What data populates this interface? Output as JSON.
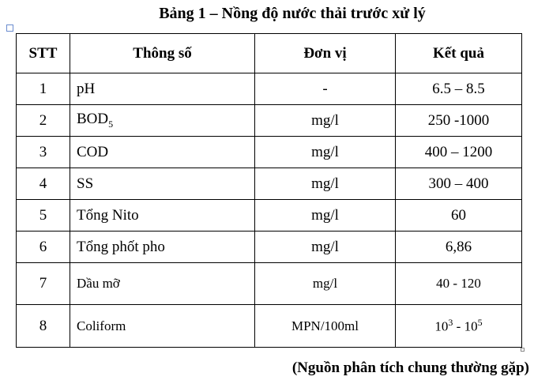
{
  "title": "Bảng 1 – Nồng độ nước thải trước xử lý",
  "table": {
    "header": [
      "STT",
      "Thông số",
      "Đơn vị",
      "Kết quả"
    ],
    "rows": [
      [
        "1",
        "pH",
        "-",
        "6.5 – 8.5"
      ],
      [
        "2",
        [
          {
            "text": "BOD"
          },
          {
            "sub": "5"
          }
        ],
        "mg/l",
        "250 -1000"
      ],
      [
        "3",
        "COD",
        "mg/l",
        "400 – 1200"
      ],
      [
        "4",
        "SS",
        "mg/l",
        "300 – 400"
      ],
      [
        "5",
        "Tổng Nito",
        "mg/l",
        "60"
      ],
      [
        "6",
        "Tổng phốt pho",
        "mg/l",
        "6,86"
      ],
      [
        "7",
        "Dầu mỡ",
        "mg/l",
        "40 - 120"
      ],
      [
        "8",
        "Coliform",
        "MPN/100ml",
        [
          {
            "text": "10"
          },
          {
            "sup": "3"
          },
          {
            "text": " - "
          },
          {
            "text": "10"
          },
          {
            "sup": "5"
          }
        ]
      ]
    ]
  },
  "source": "(Nguồn phân tích chung thường gặp)"
}
